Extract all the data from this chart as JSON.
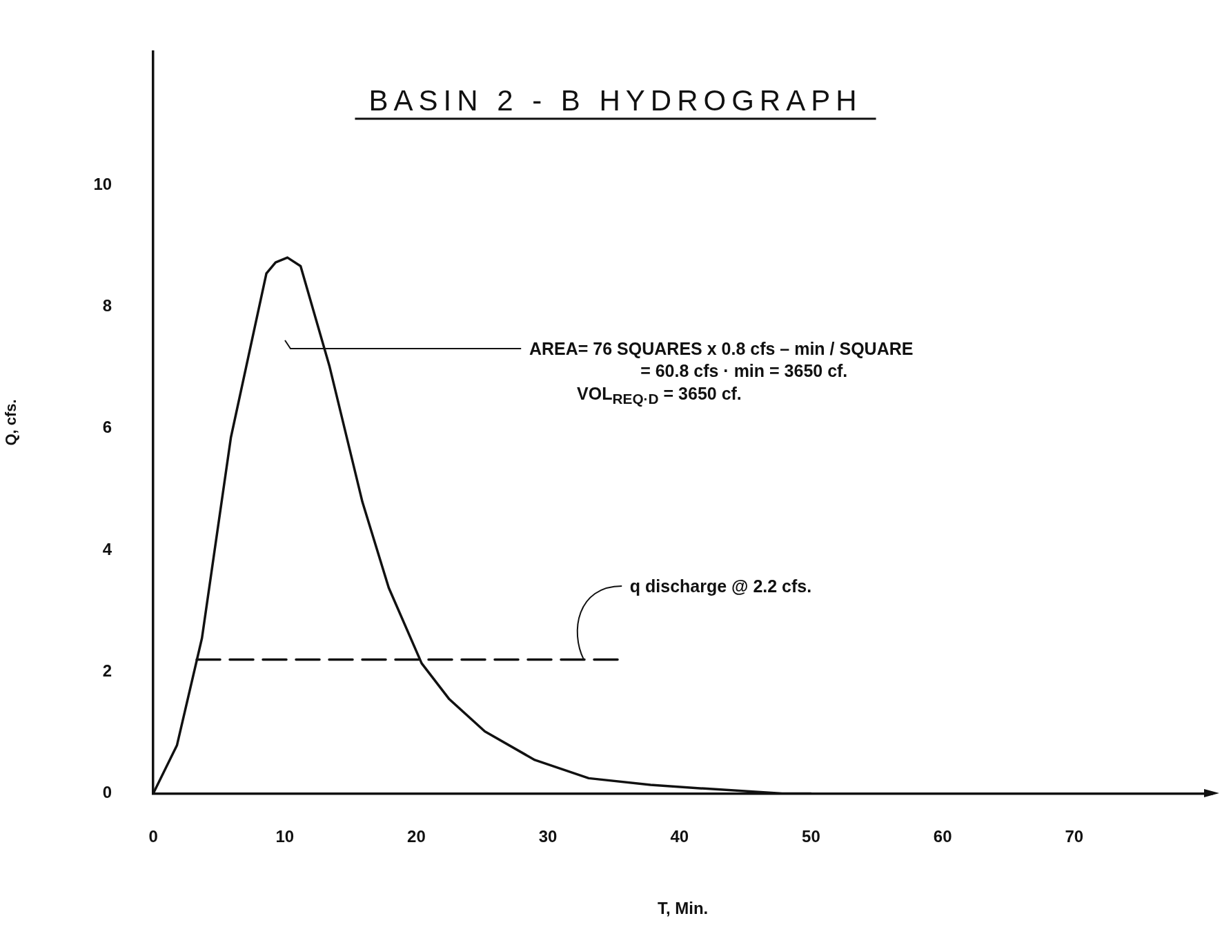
{
  "chart_data": {
    "type": "line",
    "title": "BASIN 2 - B HYDROGRAPH",
    "xlabel": "T, Min.",
    "ylabel": "Q, cfs.",
    "xlim": [
      0,
      80.5
    ],
    "ylim": [
      0,
      12.2
    ],
    "xticks": [
      0,
      10,
      20,
      30,
      40,
      50,
      60,
      70
    ],
    "yticks": [
      0,
      2,
      4,
      6,
      8,
      10
    ],
    "grid": false,
    "legend": false,
    "marker": "none",
    "series": [
      {
        "type": "line",
        "color": "#111111",
        "x": [
          0,
          1.8,
          3.7,
          5.9,
          8.6,
          9.3,
          10.2,
          11.2,
          13.4,
          15.9,
          17.9,
          20.4,
          22.5,
          25.2,
          29.0,
          33.1,
          37.8,
          41.9,
          47.8,
          50
        ],
        "values": [
          0,
          0.79,
          2.55,
          5.85,
          8.55,
          8.73,
          8.81,
          8.67,
          7.02,
          4.79,
          3.38,
          2.14,
          1.55,
          1.02,
          0.55,
          0.25,
          0.14,
          0.08,
          0,
          0
        ]
      },
      {
        "type": "line",
        "color": "#111111",
        "line_style": "dashed",
        "x": [
          3.3,
          35.6
        ],
        "values": [
          2.2,
          2.2
        ]
      }
    ],
    "annotations": [
      "AREA= 76 SQUARES x 0.8 cfs – min / SQUARE",
      "= 60.8 cfs · min = 3650 cf.",
      "VOL$_{REQ·D}$ = 3650 cf.",
      {
        "text": "q discharge @ 2.2 cfs.",
        "x": 32.7,
        "y": 2.2
      }
    ]
  }
}
